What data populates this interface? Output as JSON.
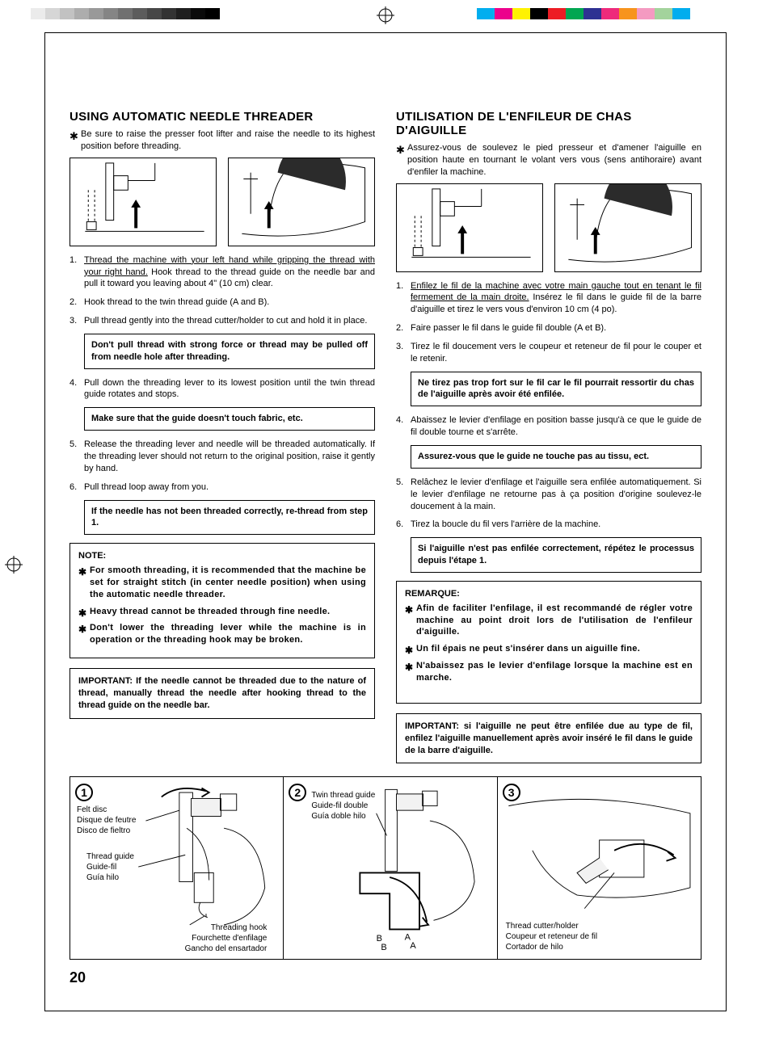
{
  "print_marks": {
    "grayscale": [
      "#ffffff",
      "#ebebeb",
      "#d6d6d6",
      "#c2c2c2",
      "#adadad",
      "#999999",
      "#858585",
      "#707070",
      "#5c5c5c",
      "#474747",
      "#333333",
      "#1f1f1f",
      "#0a0a0a",
      "#000000"
    ],
    "color": [
      "#00aeef",
      "#ec008c",
      "#fff200",
      "#000000",
      "#ed1c24",
      "#00a651",
      "#2e3192",
      "#ee2a7b",
      "#f7941d",
      "#f49ac1",
      "#a3d39c",
      "#00adee"
    ]
  },
  "page_number": "20",
  "en": {
    "title": "USING AUTOMATIC NEEDLE THREADER",
    "intro": "Be sure to raise the presser foot lifter and raise the needle to its highest position before threading.",
    "steps": [
      {
        "u": "Thread the machine with your left hand while gripping the thread with your right hand.",
        "rest": " Hook thread to the thread guide on the needle bar and pull it toward you leaving about 4\" (10 cm) clear."
      },
      {
        "rest": "Hook thread to the twin thread guide (A and B)."
      },
      {
        "rest": "Pull thread gently into the thread cutter/holder to cut and hold it in place."
      }
    ],
    "callout1": "Don't pull thread with strong force or thread may be pulled off from needle hole after threading.",
    "steps2": [
      {
        "rest": "Pull down the threading lever to its lowest position until the twin thread guide rotates and stops."
      }
    ],
    "callout2": "Make sure that the guide doesn't touch fabric, etc.",
    "steps3": [
      {
        "rest": "Release the threading lever and needle will be threaded automatically. If the threading lever should not return to the original position, raise it gently by hand."
      },
      {
        "rest": "Pull thread loop away from you."
      }
    ],
    "callout3": "If the needle has not been threaded correctly, re-thread from step 1.",
    "note_head": "NOTE:",
    "notes": [
      "For smooth threading, it is recommended that the machine be set for straight stitch (in center needle position) when using the automatic needle threader.",
      "Heavy thread cannot be threaded through fine needle.",
      "Don't lower the threading lever while the machine is in operation or the threading hook may be broken."
    ],
    "important": "IMPORTANT: If the needle cannot be threaded due to the nature of thread, manually thread the needle after hooking thread to the thread guide on the needle bar."
  },
  "fr": {
    "title": "UTILISATION DE L'ENFILEUR DE CHAS D'AIGUILLE",
    "intro": "Assurez-vous de soulevez le pied presseur et d'amener l'aiguille en position haute en tournant le volant vers vous (sens antihoraire) avant d'enfiler la machine.",
    "steps": [
      {
        "u": "Enfilez le fil de la machine avec votre main gauche tout en tenant le fil fermement de la main droite.",
        "rest": " Insérez le fil dans le guide fil de la barre d'aiguille et tirez le vers vous d'environ 10 cm (4 po)."
      },
      {
        "rest": "Faire passer le fil dans le guide fil double (A et B)."
      },
      {
        "rest": "Tirez le fil doucement vers le coupeur et reteneur de fil pour le couper et le retenir."
      }
    ],
    "callout1": "Ne tirez pas trop fort sur le fil car le fil pourrait ressortir du chas de l'aiguille après avoir été enfilée.",
    "steps2": [
      {
        "rest": "Abaissez le levier d'enfilage en position basse jusqu'à ce que le guide de fil double tourne et s'arrête."
      }
    ],
    "callout2": "Assurez-vous que le guide ne touche pas au tissu, ect.",
    "steps3": [
      {
        "rest": "Relâchez le levier d'enfilage et l'aiguille sera enfilée automatiquement. Si le levier d'enfilage ne retourne pas à ça position d'origine soulevez-le doucement à la main."
      },
      {
        "rest": "Tirez la boucle du fil vers l'arrière de la machine."
      }
    ],
    "callout3": "Si l'aiguille n'est pas enfilée correctement, répétez le processus depuis l'étape 1.",
    "note_head": "REMARQUE:",
    "notes": [
      "Afin de faciliter l'enfilage, il est recommandé de régler votre machine au point droit lors de l'utilisation de l'enfileur d'aiguille.",
      "Un fil épais ne peut s'insérer dans un aiguille fine.",
      "N'abaissez pas le levier d'enfilage lorsque la machine est en marche."
    ],
    "important": "IMPORTANT: si l'aiguille ne peut être enfilée due au type de fil, enfilez l'aiguille manuellement après avoir inséré le fil dans le guide de la barre d'aiguille."
  },
  "bottom": {
    "d1": {
      "num": "1",
      "labels1": [
        "Felt disc",
        "Disque de feutre",
        "Disco de fieltro"
      ],
      "labels2": [
        "Thread guide",
        "Guide-fil",
        "Guía hilo"
      ],
      "labels3": [
        "Threading hook",
        "Fourchette d'enfilage",
        "Gancho del ensartador"
      ]
    },
    "d2": {
      "num": "2",
      "labels1": [
        "Twin thread guide",
        "Guide-fil double",
        "Guía doble hilo"
      ],
      "A": "A",
      "B": "B"
    },
    "d3": {
      "num": "3",
      "labels1": [
        "Thread cutter/holder",
        "Coupeur et reteneur de fil",
        "Cortador de hilo"
      ]
    }
  }
}
